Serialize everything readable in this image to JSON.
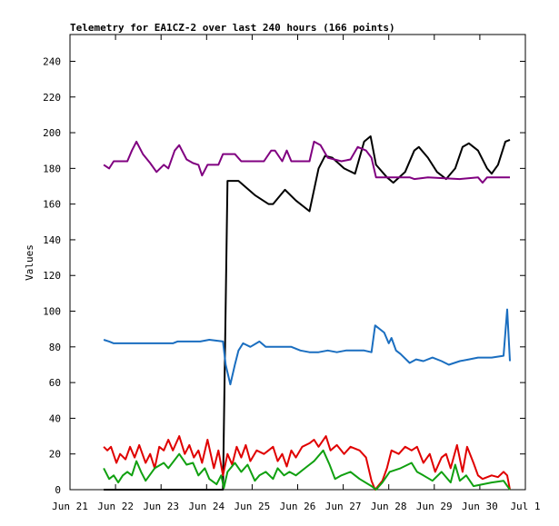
{
  "chart_data": {
    "type": "line",
    "title": "Telemetry for EA1CZ-2 over last 240 hours (166 points)",
    "ylabel": "Values",
    "xlim": [
      21,
      31
    ],
    "xticks": [
      {
        "value": 21,
        "label": "Jun 21"
      },
      {
        "value": 22,
        "label": "Jun 22"
      },
      {
        "value": 23,
        "label": "Jun 23"
      },
      {
        "value": 24,
        "label": "Jun 24"
      },
      {
        "value": 25,
        "label": "Jun 25"
      },
      {
        "value": 26,
        "label": "Jun 26"
      },
      {
        "value": 27,
        "label": "Jun 27"
      },
      {
        "value": 28,
        "label": "Jun 28"
      },
      {
        "value": 29,
        "label": "Jun 29"
      },
      {
        "value": 30,
        "label": "Jun 30"
      },
      {
        "value": 31,
        "label": "Jul 1"
      }
    ],
    "ylim": [
      0,
      255
    ],
    "yticks": [
      0,
      20,
      40,
      60,
      80,
      100,
      120,
      140,
      160,
      180,
      200,
      220,
      240
    ],
    "series": [
      {
        "color": "#000000",
        "x": [
          21.74,
          24.36,
          24.46,
          24.7,
          25.06,
          25.36,
          25.46,
          25.72,
          25.96,
          26.26,
          26.46,
          26.6,
          26.76,
          27.02,
          27.26,
          27.46,
          27.6,
          27.72,
          27.96,
          28.1,
          28.36,
          28.56,
          28.66,
          28.86,
          29.06,
          29.26,
          29.46,
          29.62,
          29.76,
          29.96,
          30.16,
          30.26,
          30.4,
          30.56,
          30.66
        ],
        "values": [
          0,
          0,
          173,
          173,
          165,
          160,
          160,
          168,
          162,
          156,
          180,
          187,
          186,
          180,
          177,
          195,
          198,
          182,
          175,
          172,
          178,
          190,
          192,
          186,
          178,
          174,
          180,
          192,
          194,
          190,
          180,
          177,
          182,
          195,
          196
        ]
      },
      {
        "color": "#800080",
        "x": [
          21.74,
          21.86,
          21.96,
          22.26,
          22.36,
          22.46,
          22.6,
          22.76,
          22.9,
          23.06,
          23.16,
          23.3,
          23.4,
          23.56,
          23.7,
          23.82,
          23.9,
          24.02,
          24.26,
          24.36,
          24.62,
          24.76,
          25.26,
          25.42,
          25.5,
          25.66,
          25.76,
          25.86,
          26.26,
          26.36,
          26.5,
          26.66,
          26.96,
          27.16,
          27.32,
          27.5,
          27.62,
          27.72,
          28.46,
          28.56,
          28.86,
          29.56,
          29.96,
          30.06,
          30.16,
          30.66
        ],
        "values": [
          182,
          180,
          184,
          184,
          190,
          195,
          188,
          183,
          178,
          182,
          180,
          190,
          193,
          185,
          183,
          182,
          176,
          182,
          182,
          188,
          188,
          184,
          184,
          190,
          190,
          184,
          190,
          184,
          184,
          195,
          193,
          186,
          184,
          185,
          192,
          190,
          186,
          175,
          175,
          174,
          175,
          174,
          175,
          172,
          175,
          175
        ]
      },
      {
        "color": "#1a6ec0",
        "x": [
          21.74,
          21.86,
          21.96,
          23.26,
          23.36,
          23.86,
          24.06,
          24.36,
          24.42,
          24.52,
          24.62,
          24.7,
          24.8,
          24.96,
          25.16,
          25.3,
          25.86,
          26.06,
          26.26,
          26.46,
          26.66,
          26.86,
          27.06,
          27.46,
          27.62,
          27.7,
          27.9,
          28.0,
          28.06,
          28.16,
          28.26,
          28.46,
          28.6,
          28.76,
          28.96,
          29.16,
          29.32,
          29.56,
          29.76,
          29.96,
          30.26,
          30.52,
          30.6,
          30.66
        ],
        "values": [
          84,
          83,
          82,
          82,
          83,
          83,
          84,
          83,
          70,
          59,
          70,
          78,
          82,
          80,
          83,
          80,
          80,
          78,
          77,
          77,
          78,
          77,
          78,
          78,
          77,
          92,
          88,
          82,
          85,
          78,
          76,
          71,
          73,
          72,
          74,
          72,
          70,
          72,
          73,
          74,
          74,
          75,
          101,
          72
        ]
      },
      {
        "color": "#e00000",
        "x": [
          21.74,
          21.82,
          21.9,
          22.02,
          22.1,
          22.22,
          22.32,
          22.42,
          22.52,
          22.66,
          22.76,
          22.86,
          22.96,
          23.06,
          23.16,
          23.26,
          23.4,
          23.52,
          23.62,
          23.72,
          23.82,
          23.9,
          24.02,
          24.16,
          24.26,
          24.36,
          24.46,
          24.56,
          24.66,
          24.76,
          24.86,
          24.96,
          25.1,
          25.26,
          25.36,
          25.46,
          25.56,
          25.66,
          25.76,
          25.86,
          25.96,
          26.1,
          26.26,
          26.36,
          26.46,
          26.62,
          26.72,
          26.86,
          27.02,
          27.16,
          27.36,
          27.5,
          27.62,
          27.7,
          27.86,
          27.96,
          28.06,
          28.22,
          28.36,
          28.5,
          28.62,
          28.76,
          28.9,
          29.02,
          29.16,
          29.26,
          29.36,
          29.5,
          29.62,
          29.72,
          29.86,
          29.96,
          30.06,
          30.26,
          30.4,
          30.52,
          30.6,
          30.66
        ],
        "values": [
          24,
          22,
          24,
          15,
          20,
          17,
          24,
          18,
          25,
          15,
          20,
          12,
          24,
          22,
          28,
          22,
          30,
          20,
          25,
          18,
          22,
          15,
          28,
          12,
          22,
          8,
          20,
          14,
          24,
          18,
          25,
          16,
          22,
          20,
          22,
          24,
          16,
          20,
          13,
          22,
          18,
          24,
          26,
          28,
          24,
          30,
          22,
          25,
          20,
          24,
          22,
          18,
          5,
          0,
          5,
          12,
          22,
          20,
          24,
          22,
          24,
          15,
          20,
          10,
          18,
          20,
          12,
          25,
          10,
          24,
          15,
          8,
          6,
          8,
          7,
          10,
          8,
          0
        ]
      },
      {
        "color": "#10a010",
        "x": [
          21.74,
          21.86,
          21.96,
          22.06,
          22.16,
          22.26,
          22.36,
          22.46,
          22.56,
          22.66,
          22.86,
          23.06,
          23.16,
          23.4,
          23.56,
          23.7,
          23.82,
          23.96,
          24.06,
          24.22,
          24.32,
          24.38,
          24.46,
          24.62,
          24.76,
          24.9,
          25.06,
          25.16,
          25.3,
          25.46,
          25.56,
          25.7,
          25.82,
          25.96,
          26.16,
          26.36,
          26.56,
          26.7,
          26.82,
          26.96,
          27.16,
          27.36,
          27.62,
          27.72,
          27.86,
          28.02,
          28.26,
          28.5,
          28.62,
          28.76,
          28.96,
          29.16,
          29.36,
          29.46,
          29.56,
          29.7,
          29.86,
          30.06,
          30.26,
          30.52,
          30.66
        ],
        "values": [
          12,
          6,
          8,
          4,
          8,
          10,
          8,
          16,
          10,
          5,
          12,
          15,
          12,
          20,
          14,
          15,
          8,
          12,
          6,
          3,
          8,
          1,
          10,
          15,
          10,
          14,
          5,
          8,
          10,
          6,
          12,
          8,
          10,
          8,
          12,
          16,
          22,
          14,
          6,
          8,
          10,
          6,
          2,
          0,
          4,
          10,
          12,
          15,
          10,
          8,
          5,
          10,
          4,
          14,
          5,
          8,
          2,
          3,
          4,
          5,
          0
        ]
      }
    ]
  }
}
